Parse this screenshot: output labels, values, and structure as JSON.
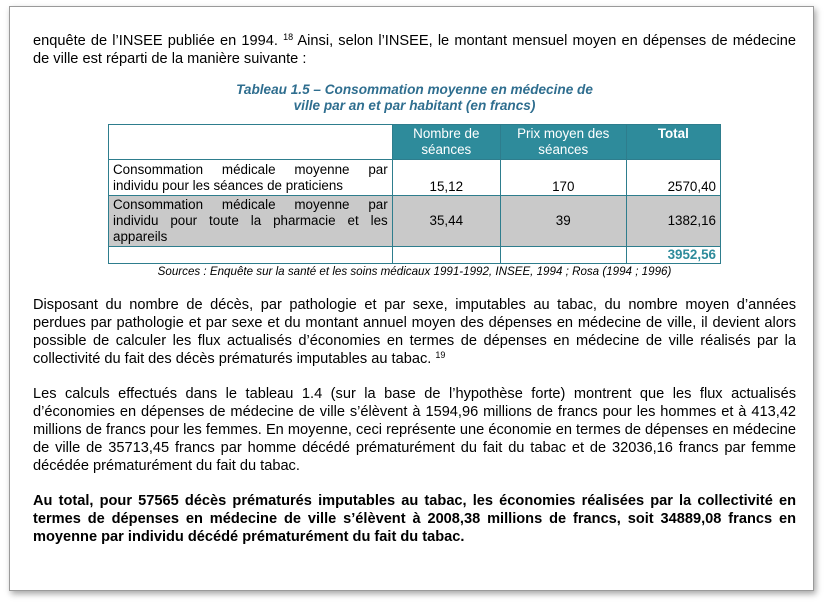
{
  "intro": {
    "text_a": "enquête de l’INSEE publiée en 1994.",
    "footnote": "18",
    "text_b": " Ainsi, selon l’INSEE, le montant mensuel moyen en dépenses de médecine de ville est réparti de la manière suivante :"
  },
  "table": {
    "caption_line1": "Tableau 1.5 – Consommation moyenne en médecine de",
    "caption_line2": "ville par an et par habitant (en francs)",
    "headers": [
      "Nombre de séances",
      "Prix moyen des séances",
      "Total"
    ],
    "rows": [
      {
        "label": "Consommation médicale moyenne par individu pour les séances de praticiens",
        "seances": "15,12",
        "prix": "170",
        "total": "2570,40"
      },
      {
        "label": "Consommation médicale moyenne par individu pour toute la pharmacie et les appareils",
        "seances": "35,44",
        "prix": "39",
        "total": "1382,16"
      }
    ],
    "grand_total": "3952,56",
    "source": "Sources : Enquête sur la santé et les soins médicaux 1991-1992, INSEE, 1994 ; Rosa (1994 ; 1996)"
  },
  "para2": {
    "text": "Disposant du nombre de décès, par pathologie et par sexe, imputables au tabac, du nombre moyen d’années perdues par pathologie et par sexe et du montant annuel moyen des dépenses en médecine de ville, il devient alors possible de calculer les flux actualisés d’économies en termes de dépenses en médecine de ville réalisés par la collectivité du fait des décès prématurés imputables au tabac.",
    "footnote": "19"
  },
  "para3": "Les calculs effectués dans le tableau 1.4 (sur la base de l’hypothèse forte) montrent que les flux actualisés d’économies en dépenses de médecine de ville s’élèvent à 1594,96 millions de francs pour les hommes et à 413,42 millions de francs pour les femmes. En moyenne, ceci représente une économie en termes de dépenses en médecine de ville de 35713,45 francs par homme décédé prématurément du fait du tabac et de 32036,16 francs par femme décédée prématurément du fait du tabac.",
  "para4": "Au total, pour 57565 décès prématurés imputables au tabac, les économies réalisées par la collectivité en termes de dépenses en médecine de ville s’élèvent à 2008,38 millions de francs, soit 34889,08 francs en moyenne par individu décédé prématurément du fait du tabac."
}
